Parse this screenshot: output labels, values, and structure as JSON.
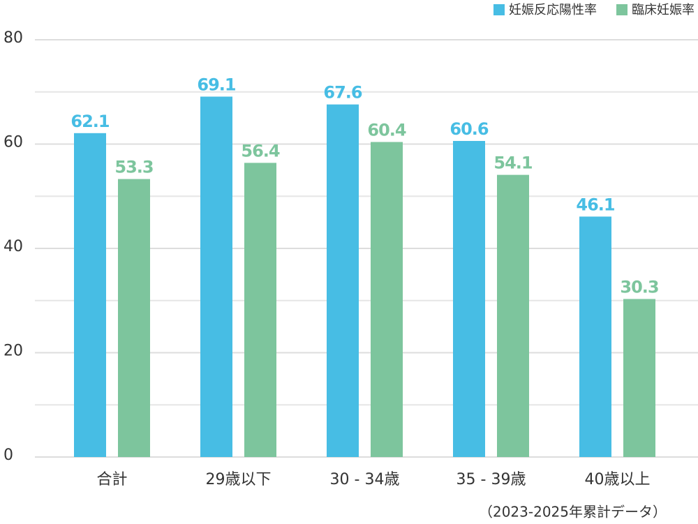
{
  "chart_data": {
    "type": "bar",
    "categories": [
      "合計",
      "29歳以下",
      "30 - 34歳",
      "35 - 39歳",
      "40歳以上"
    ],
    "series": [
      {
        "name": "妊娠反応陽性率",
        "color": "#47bde4",
        "values": [
          62.1,
          69.1,
          67.6,
          60.6,
          46.1
        ]
      },
      {
        "name": "臨床妊娠率",
        "color": "#7dc59d",
        "values": [
          53.3,
          56.4,
          60.4,
          54.1,
          30.3
        ]
      }
    ],
    "ylim": [
      0,
      80
    ],
    "yticks": [
      0,
      20,
      40,
      60,
      80
    ],
    "grid": true,
    "legend": "top-right",
    "note": "（2023-2025年累計データ）"
  }
}
